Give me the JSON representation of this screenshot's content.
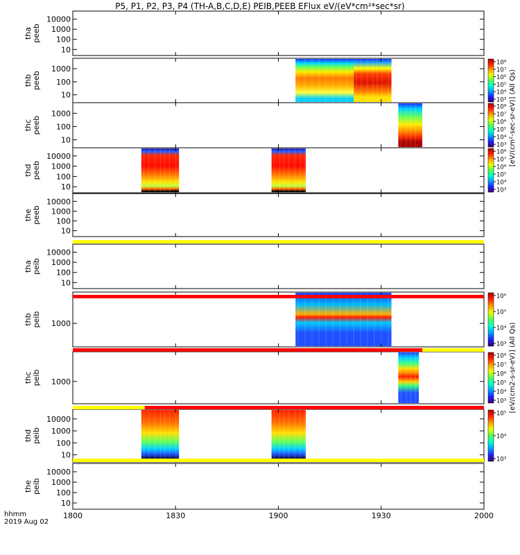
{
  "title": "P5, P1, P2, P3, P4 (TH-A,B,C,D,E) PEIB,PEEB EFlux eV/(eV*cm²*sec*sr)",
  "footer": {
    "line1": "hhmm",
    "line2": "2019 Aug 02"
  },
  "colors": {
    "yellow": "#ffff00",
    "red": "#ff0000",
    "axis": "#000000"
  },
  "chart_data": {
    "type": "heatmap",
    "x_axis": {
      "range": [
        "18:00",
        "20:00"
      ],
      "ticks": [
        "1800",
        "1830",
        "1900",
        "1930",
        "2000"
      ]
    },
    "panels": [
      {
        "id": "tha_peeb",
        "label": [
          "tha",
          "peeb"
        ],
        "scale": "log",
        "yticks": [
          "10",
          "100",
          "1000",
          "10000"
        ],
        "blocks": []
      },
      {
        "id": "thb_peeb",
        "label": [
          "thb",
          "peeb"
        ],
        "scale": "log",
        "yticks": [
          "10",
          "100",
          "1000"
        ],
        "blocks": [
          {
            "start": "19:05",
            "end": "19:22",
            "style": "thb_e1"
          },
          {
            "start": "19:22",
            "end": "19:33",
            "style": "thb_e2"
          }
        ],
        "colorbar": {
          "ticks": [
            "10³",
            "10⁴",
            "10⁵",
            "10⁶",
            "10⁷",
            "10⁸"
          ]
        }
      },
      {
        "id": "thc_peeb",
        "label": [
          "thc",
          "peeb"
        ],
        "scale": "log",
        "yticks": [
          "10",
          "100",
          "1000"
        ],
        "blocks": [
          {
            "start": "19:35",
            "end": "19:42",
            "style": "thc_e"
          }
        ],
        "colorbar": {
          "ticks": [
            "10³",
            "10⁴",
            "10⁵",
            "10⁶",
            "10⁷",
            "10⁸"
          ]
        }
      },
      {
        "id": "thd_peeb",
        "label": [
          "thd",
          "peeb"
        ],
        "scale": "log",
        "yticks": [
          "10",
          "100",
          "1000",
          "10000"
        ],
        "blocks": [
          {
            "start": "18:20",
            "end": "18:31",
            "style": "thd_e"
          },
          {
            "start": "18:58",
            "end": "19:08",
            "style": "thd_e"
          }
        ],
        "colorbar": {
          "ticks": [
            "10³",
            "10⁴",
            "10⁵",
            "10⁶",
            "10⁷",
            "10⁸"
          ]
        }
      },
      {
        "id": "the_peeb",
        "label": [
          "the",
          "peeb"
        ],
        "scale": "log",
        "yticks": [
          "10",
          "100",
          "1000",
          "10000"
        ],
        "blocks": []
      },
      {
        "id": "tha_peib",
        "label": [
          "tha",
          "peib"
        ],
        "scale": "log",
        "yticks": [
          "10",
          "100",
          "1000",
          "10000"
        ],
        "blocks": []
      },
      {
        "id": "thb_peib",
        "label": [
          "thb",
          "peib"
        ],
        "scale": "log",
        "yticks": [
          "1000"
        ],
        "blocks": [
          {
            "start": "19:05",
            "end": "19:33",
            "style": "thb_i"
          }
        ],
        "colorbar": {
          "ticks": [
            "10³",
            "10⁴",
            "10⁵",
            "10⁶"
          ]
        }
      },
      {
        "id": "thc_peib",
        "label": [
          "thc",
          "peib"
        ],
        "scale": "log",
        "yticks": [
          "1000"
        ],
        "blocks": [
          {
            "start": "19:35",
            "end": "19:41",
            "style": "thc_i"
          }
        ],
        "colorbar": {
          "ticks": [
            "10³",
            "10⁴",
            "10⁵",
            "10⁶",
            "10⁷",
            "10⁸"
          ]
        }
      },
      {
        "id": "thd_peib",
        "label": [
          "thd",
          "peib"
        ],
        "scale": "log",
        "yticks": [
          "10",
          "100",
          "1000",
          "10000"
        ],
        "blocks": [
          {
            "start": "18:20",
            "end": "18:31",
            "style": "thd_i"
          },
          {
            "start": "18:58",
            "end": "19:08",
            "style": "thd_i"
          }
        ],
        "colorbar": {
          "ticks": [
            "10³",
            "10⁴",
            "10⁵"
          ]
        }
      },
      {
        "id": "the_peib",
        "label": [
          "the",
          "peib"
        ],
        "scale": "log",
        "yticks": [
          "10",
          "100",
          "1000",
          "10000"
        ],
        "blocks": []
      }
    ],
    "flag_bars": [
      {
        "after": "the_peeb",
        "segments": [
          {
            "start": "18:00",
            "end": "20:00",
            "color": "yellow"
          }
        ]
      },
      {
        "after": "tha_peib",
        "segments": [
          {
            "start": "18:00",
            "end": "20:00",
            "color": "red"
          }
        ]
      },
      {
        "after": "thb_peib",
        "segments": [
          {
            "start": "18:00",
            "end": "19:42",
            "color": "red"
          },
          {
            "start": "19:42",
            "end": "20:00",
            "color": "yellow"
          }
        ]
      },
      {
        "after": "thc_peib",
        "segments": [
          {
            "start": "18:00",
            "end": "18:21",
            "color": "yellow"
          },
          {
            "start": "18:21",
            "end": "20:00",
            "color": "red"
          }
        ]
      },
      {
        "after": "thd_peib",
        "segments": [
          {
            "start": "18:00",
            "end": "20:00",
            "color": "yellow"
          }
        ]
      }
    ],
    "colorbar_labels": [
      {
        "text": "[eV/(cm²-sec-sr-eV)] (All Qs)",
        "group": "peeb"
      },
      {
        "text": "[eV/(cm2-s-sr-eV)] (All Qs)",
        "group": "peib"
      }
    ]
  }
}
